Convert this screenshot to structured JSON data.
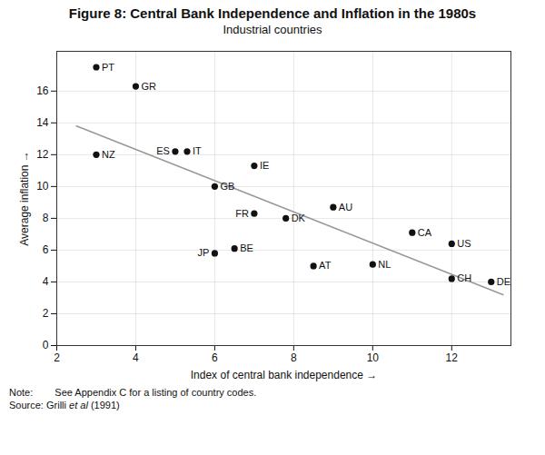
{
  "chart_data": {
    "type": "scatter",
    "title": "Figure 8: Central Bank Independence and Inflation in the 1980s",
    "subtitle": "Industrial countries",
    "xlabel": "Index of central bank independence",
    "ylabel": "Average inflation",
    "xlim": [
      2,
      13.5
    ],
    "ylim": [
      0,
      18.5
    ],
    "xticks": [
      2,
      4,
      6,
      8,
      10,
      12
    ],
    "yticks": [
      0,
      2,
      4,
      6,
      8,
      10,
      12,
      14,
      16
    ],
    "grid": true,
    "color": "#111111",
    "points": [
      {
        "label": "PT",
        "x": 3.0,
        "y": 17.5
      },
      {
        "label": "GR",
        "x": 4.0,
        "y": 16.3
      },
      {
        "label": "NZ",
        "x": 3.0,
        "y": 12.0
      },
      {
        "label": "ES",
        "x": 5.0,
        "y": 12.2
      },
      {
        "label": "IT",
        "x": 5.3,
        "y": 12.2
      },
      {
        "label": "GB",
        "x": 6.0,
        "y": 10.0
      },
      {
        "label": "IE",
        "x": 7.0,
        "y": 11.3
      },
      {
        "label": "FR",
        "x": 7.0,
        "y": 8.3
      },
      {
        "label": "DK",
        "x": 7.8,
        "y": 8.0
      },
      {
        "label": "AU",
        "x": 9.0,
        "y": 8.7
      },
      {
        "label": "JP",
        "x": 6.0,
        "y": 5.8
      },
      {
        "label": "BE",
        "x": 6.5,
        "y": 6.1
      },
      {
        "label": "AT",
        "x": 8.5,
        "y": 5.0
      },
      {
        "label": "NL",
        "x": 10.0,
        "y": 5.1
      },
      {
        "label": "CA",
        "x": 11.0,
        "y": 7.1
      },
      {
        "label": "US",
        "x": 12.0,
        "y": 6.4
      },
      {
        "label": "CH",
        "x": 12.0,
        "y": 4.2
      },
      {
        "label": "DE",
        "x": 13.0,
        "y": 4.0
      }
    ],
    "trend": {
      "type": "line",
      "x": [
        2.5,
        13.3
      ],
      "y": [
        13.8,
        3.2
      ],
      "color": "#999999"
    },
    "annotations": [
      {
        "parts": [
          {
            "text": "Note:"
          },
          {
            "text": "See Appendix C for a listing of country codes."
          }
        ]
      },
      {
        "parts": [
          {
            "text": "Source: Grilli "
          },
          {
            "text": "et al",
            "style": "italic"
          },
          {
            "text": " (1991)"
          }
        ]
      }
    ]
  }
}
